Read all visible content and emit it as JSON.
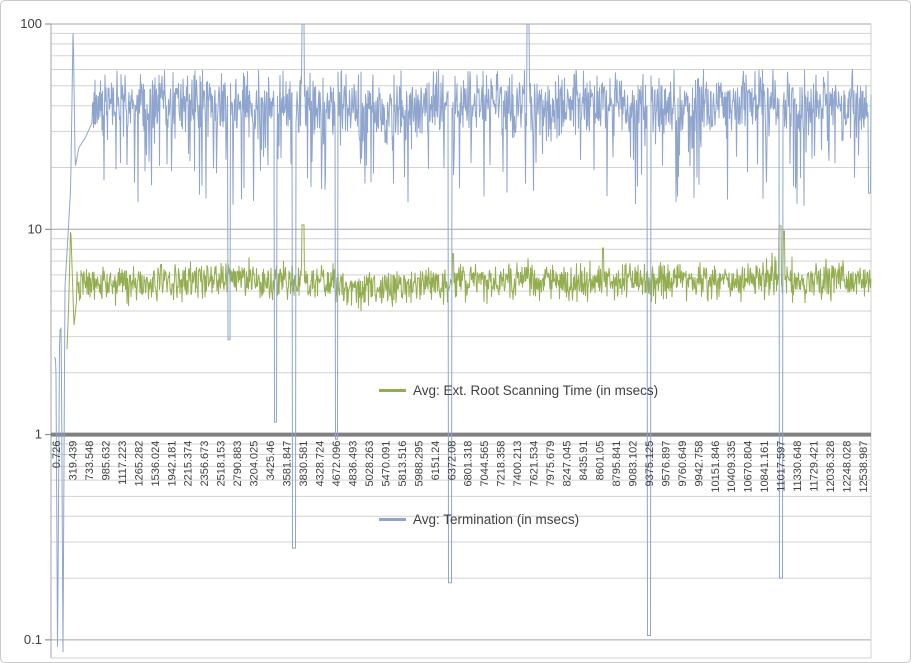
{
  "chart": {
    "background": "#FFFFFF",
    "border_color": "#C9C9C9",
    "axis_text_color": "#3F3F3F",
    "gridline_minor_color": "#D2D2D2",
    "gridline_major_color": "#A6A6A6",
    "category_axis_color": "#808080",
    "legend": [
      {
        "label": "Avg: Ext. Root Scanning Time (in msecs)",
        "color": "#94AD50"
      },
      {
        "label": "Avg: Termination (in msecs)",
        "color": "#8FA5CD"
      }
    ]
  },
  "chart_data": {
    "type": "line",
    "title": "",
    "xlabel": "",
    "ylabel": "",
    "y_axis": {
      "scale": "log10",
      "min": 0.1,
      "max": 100,
      "tick_values": [
        100,
        10,
        1,
        0.1
      ],
      "tick_labels": [
        "100",
        "10",
        "1",
        "0.1"
      ]
    },
    "x_axis": {
      "tick_labels": [
        "0.726",
        "319.439",
        "733.548",
        "985.632",
        "1117.223",
        "1265.282",
        "1536.024",
        "1942.181",
        "2215.374",
        "2356.673",
        "2518.153",
        "2790.883",
        "3204.025",
        "3425.46",
        "3581.847",
        "3830.581",
        "4328.724",
        "4672.096",
        "4836.493",
        "5028.263",
        "5470.091",
        "5813.516",
        "5988.295",
        "6151.24",
        "6372.08",
        "6801.318",
        "7044.565",
        "7218.358",
        "7400.213",
        "7621.534",
        "7975.679",
        "8247.045",
        "8435.91",
        "8601.05",
        "8795.841",
        "9083.102",
        "9375.125",
        "9576.897",
        "9760.649",
        "9942.758",
        "10151.846",
        "10409.335",
        "10670.804",
        "10841.161",
        "11017.597",
        "11330.648",
        "11729.421",
        "12036.328",
        "12248.028",
        "12538.987"
      ]
    },
    "grid": {
      "horizontal_minor": true,
      "horizontal_major": true,
      "vertical": false
    },
    "legend_position": "floating-inside",
    "series": [
      {
        "name": "Avg: Ext. Root Scanning Time (in msecs)",
        "color": "#94AD50",
        "seed": 5,
        "band": {
          "mean": 5.6,
          "low": 4.3,
          "high": 7.0
        },
        "gen": {
          "peak_p": 0.03,
          "peak_scale": 1.12,
          "dip_p": 0.02,
          "dip_scale": 0.88
        },
        "start_ramp": [
          [
            0.0195,
            2.6
          ],
          [
            0.0215,
            4.2
          ],
          [
            0.024,
            10.5
          ],
          [
            0.028,
            3.4
          ],
          [
            0.0315,
            4.6
          ]
        ],
        "anomalies": [
          {
            "f": 0.3073,
            "v": 10.5,
            "r": 2
          },
          {
            "f": 0.49,
            "v": 7.6,
            "r": 1
          },
          {
            "f": 0.673,
            "v": 8.1,
            "r": 1
          },
          {
            "f": 0.889,
            "v": 10.4,
            "r": 2
          },
          {
            "f": 0.894,
            "v": 9.8,
            "r": 1
          }
        ]
      },
      {
        "name": "Avg: Termination (in msecs)",
        "color": "#8FA5CD",
        "seed": 20,
        "band": {
          "mean": 41,
          "low": 26,
          "high": 57
        },
        "gen": {
          "deep_tick_p": 0.05,
          "deep_tick_lo": 13,
          "deep_tick_hi": 23,
          "dip_p": 0.1,
          "dip_scale": 0.62,
          "peak_p": 0.04
        },
        "start_ramp": [
          [
            0.004,
            2.4
          ],
          [
            0.006,
            2.3
          ],
          [
            0.008,
            0.082
          ],
          [
            0.0105,
            3.2
          ],
          [
            0.0125,
            3.3
          ],
          [
            0.0146,
            0.082
          ],
          [
            0.017,
            5.2
          ],
          [
            0.0205,
            9.0
          ],
          [
            0.024,
            16.0
          ],
          [
            0.027,
            100.0
          ],
          [
            0.0295,
            20.0
          ],
          [
            0.034,
            25.0
          ],
          [
            0.042,
            28.0
          ],
          [
            0.05,
            33.0
          ]
        ],
        "anomalies": [
          {
            "f": 0.217,
            "v": 2.9,
            "r": 2
          },
          {
            "f": 0.274,
            "v": 1.15,
            "r": 2
          },
          {
            "f": 0.2963,
            "v": 0.28,
            "r": 3
          },
          {
            "f": 0.3073,
            "v": 100,
            "r": 2
          },
          {
            "f": 0.348,
            "v": 0.95,
            "r": 2
          },
          {
            "f": 0.4866,
            "v": 0.19,
            "r": 3
          },
          {
            "f": 0.5817,
            "v": 100,
            "r": 2
          },
          {
            "f": 0.729,
            "v": 0.105,
            "r": 3
          },
          {
            "f": 0.89,
            "v": 0.2,
            "r": 3
          },
          {
            "f": 0.998,
            "v": 15,
            "r": 2
          }
        ]
      }
    ]
  }
}
